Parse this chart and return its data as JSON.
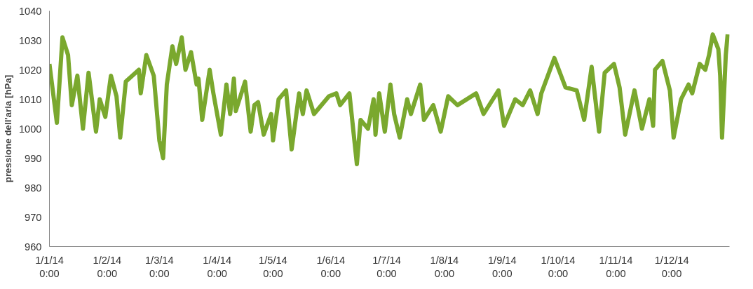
{
  "chart_data": {
    "type": "line",
    "ylabel": "pressione dell'aria [hPa]",
    "x": [
      "2014-01-01",
      "2014-01-05",
      "2014-01-08",
      "2014-01-11",
      "2014-01-13",
      "2014-01-16",
      "2014-01-19",
      "2014-01-22",
      "2014-01-26",
      "2014-01-28",
      "2014-01-31",
      "2014-02-03",
      "2014-02-06",
      "2014-02-08",
      "2014-02-11",
      "2014-02-18",
      "2014-02-19",
      "2014-02-22",
      "2014-02-26",
      "2014-03-01",
      "2014-03-03",
      "2014-03-05",
      "2014-03-08",
      "2014-03-10",
      "2014-03-13",
      "2014-03-15",
      "2014-03-18",
      "2014-03-21",
      "2014-03-22",
      "2014-03-24",
      "2014-03-28",
      "2014-03-30",
      "2014-04-03",
      "2014-04-06",
      "2014-04-08",
      "2014-04-10",
      "2014-04-11",
      "2014-04-16",
      "2014-04-19",
      "2014-04-21",
      "2014-04-23",
      "2014-04-26",
      "2014-04-30",
      "2014-05-01",
      "2014-05-04",
      "2014-05-08",
      "2014-05-11",
      "2014-05-15",
      "2014-05-17",
      "2014-05-19",
      "2014-05-23",
      "2014-05-31",
      "2014-06-04",
      "2014-06-06",
      "2014-06-11",
      "2014-06-15",
      "2014-06-17",
      "2014-06-21",
      "2014-06-24",
      "2014-06-25",
      "2014-06-27",
      "2014-06-30",
      "2014-07-03",
      "2014-07-05",
      "2014-07-08",
      "2014-07-12",
      "2014-07-14",
      "2014-07-19",
      "2014-07-21",
      "2014-07-26",
      "2014-07-30",
      "2014-08-03",
      "2014-08-08",
      "2014-08-18",
      "2014-08-22",
      "2014-08-30",
      "2014-09-02",
      "2014-09-08",
      "2014-09-12",
      "2014-09-16",
      "2014-09-20",
      "2014-09-22",
      "2014-09-29",
      "2014-10-05",
      "2014-10-11",
      "2014-10-15",
      "2014-10-19",
      "2014-10-23",
      "2014-10-26",
      "2014-10-31",
      "2014-11-03",
      "2014-11-06",
      "2014-11-11",
      "2014-11-15",
      "2014-11-19",
      "2014-11-21",
      "2014-11-22",
      "2014-11-26",
      "2014-11-30",
      "2014-12-02",
      "2014-12-06",
      "2014-12-10",
      "2014-12-12",
      "2014-12-16",
      "2014-12-19",
      "2014-12-21",
      "2014-12-23",
      "2014-12-26",
      "2014-12-27",
      "2014-12-28",
      "2014-12-30",
      "2014-12-31"
    ],
    "series": [
      {
        "color": "#7aa82e",
        "values": [
          1022,
          1002,
          1031,
          1025,
          1008,
          1018,
          1000,
          1019,
          999,
          1010,
          1004,
          1018,
          1011,
          997,
          1016,
          1020,
          1012,
          1025,
          1018,
          996,
          990,
          1015,
          1028,
          1022,
          1031,
          1020,
          1026,
          1015,
          1017,
          1003,
          1020,
          1012,
          998,
          1015,
          1005,
          1017,
          1006,
          1016,
          999,
          1008,
          1009,
          998,
          1005,
          996,
          1010,
          1013,
          993,
          1012,
          1005,
          1013,
          1005,
          1011,
          1012,
          1008,
          1012,
          988,
          1003,
          1000,
          1010,
          998,
          1012,
          999,
          1015,
          1005,
          997,
          1010,
          1005,
          1015,
          1003,
          1008,
          999,
          1011,
          1008,
          1012,
          1005,
          1013,
          1001,
          1010,
          1008,
          1013,
          1005,
          1012,
          1024,
          1014,
          1013,
          1003,
          1021,
          999,
          1019,
          1022,
          1014,
          998,
          1013,
          1000,
          1010,
          1001,
          1020,
          1023,
          1013,
          997,
          1010,
          1015,
          1012,
          1022,
          1020,
          1025,
          1032,
          1027,
          1018,
          997,
          1025,
          1032
        ]
      }
    ],
    "xlim": [
      "2014-01-01",
      "2015-01-01"
    ],
    "xticks": [
      {
        "value": "2014-01-01",
        "label": "1/1/14\n0:00"
      },
      {
        "value": "2014-02-01",
        "label": "1/2/14\n0:00"
      },
      {
        "value": "2014-03-01",
        "label": "1/3/14\n0:00"
      },
      {
        "value": "2014-04-01",
        "label": "1/4/14\n0:00"
      },
      {
        "value": "2014-05-01",
        "label": "1/5/14\n0:00"
      },
      {
        "value": "2014-06-01",
        "label": "1/6/14\n0:00"
      },
      {
        "value": "2014-07-01",
        "label": "1/7/14\n0:00"
      },
      {
        "value": "2014-08-01",
        "label": "1/8/14\n0:00"
      },
      {
        "value": "2014-09-01",
        "label": "1/9/14\n0:00"
      },
      {
        "value": "2014-10-01",
        "label": "1/10/14\n0:00"
      },
      {
        "value": "2014-11-01",
        "label": "1/11/14\n0:00"
      },
      {
        "value": "2014-12-01",
        "label": "1/12/14\n0:00"
      }
    ],
    "ylim": [
      960,
      1040
    ],
    "yticks": [
      960,
      970,
      980,
      990,
      1000,
      1010,
      1020,
      1030,
      1040
    ],
    "grid": false,
    "marker": "none",
    "line_style": "solid"
  }
}
